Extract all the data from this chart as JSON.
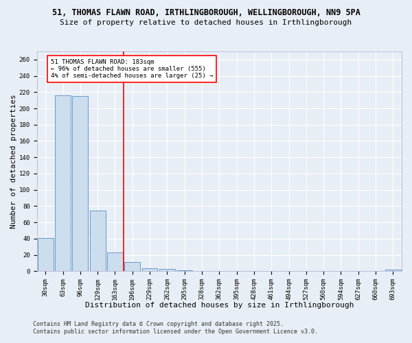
{
  "title_line1": "51, THOMAS FLAWN ROAD, IRTHLINGBOROUGH, WELLINGBOROUGH, NN9 5PA",
  "title_line2": "Size of property relative to detached houses in Irthlingborough",
  "xlabel": "Distribution of detached houses by size in Irthlingborough",
  "ylabel": "Number of detached properties",
  "categories": [
    "30sqm",
    "63sqm",
    "96sqm",
    "129sqm",
    "163sqm",
    "196sqm",
    "229sqm",
    "262sqm",
    "295sqm",
    "328sqm",
    "362sqm",
    "395sqm",
    "428sqm",
    "461sqm",
    "494sqm",
    "527sqm",
    "560sqm",
    "594sqm",
    "627sqm",
    "660sqm",
    "693sqm"
  ],
  "values": [
    41,
    216,
    215,
    74,
    23,
    11,
    4,
    3,
    1,
    0,
    0,
    0,
    0,
    0,
    0,
    0,
    0,
    0,
    0,
    0,
    2
  ],
  "bar_color": "#ccdded",
  "bar_edge_color": "#6699cc",
  "vline_x": 4.5,
  "vline_color": "red",
  "annotation_text": "51 THOMAS FLAWN ROAD: 183sqm\n← 96% of detached houses are smaller (555)\n4% of semi-detached houses are larger (25) →",
  "ylim": [
    0,
    270
  ],
  "yticks": [
    0,
    20,
    40,
    60,
    80,
    100,
    120,
    140,
    160,
    180,
    200,
    220,
    240,
    260
  ],
  "footer_line1": "Contains HM Land Registry data © Crown copyright and database right 2025.",
  "footer_line2": "Contains public sector information licensed under the Open Government Licence v3.0.",
  "bg_color": "#e8eef5",
  "plot_bg_color": "#e8eef5",
  "grid_color": "white",
  "title_fontsize": 8.5,
  "subtitle_fontsize": 8,
  "axis_label_fontsize": 8,
  "tick_fontsize": 6.5,
  "footer_fontsize": 6,
  "ann_fontsize": 6.5
}
